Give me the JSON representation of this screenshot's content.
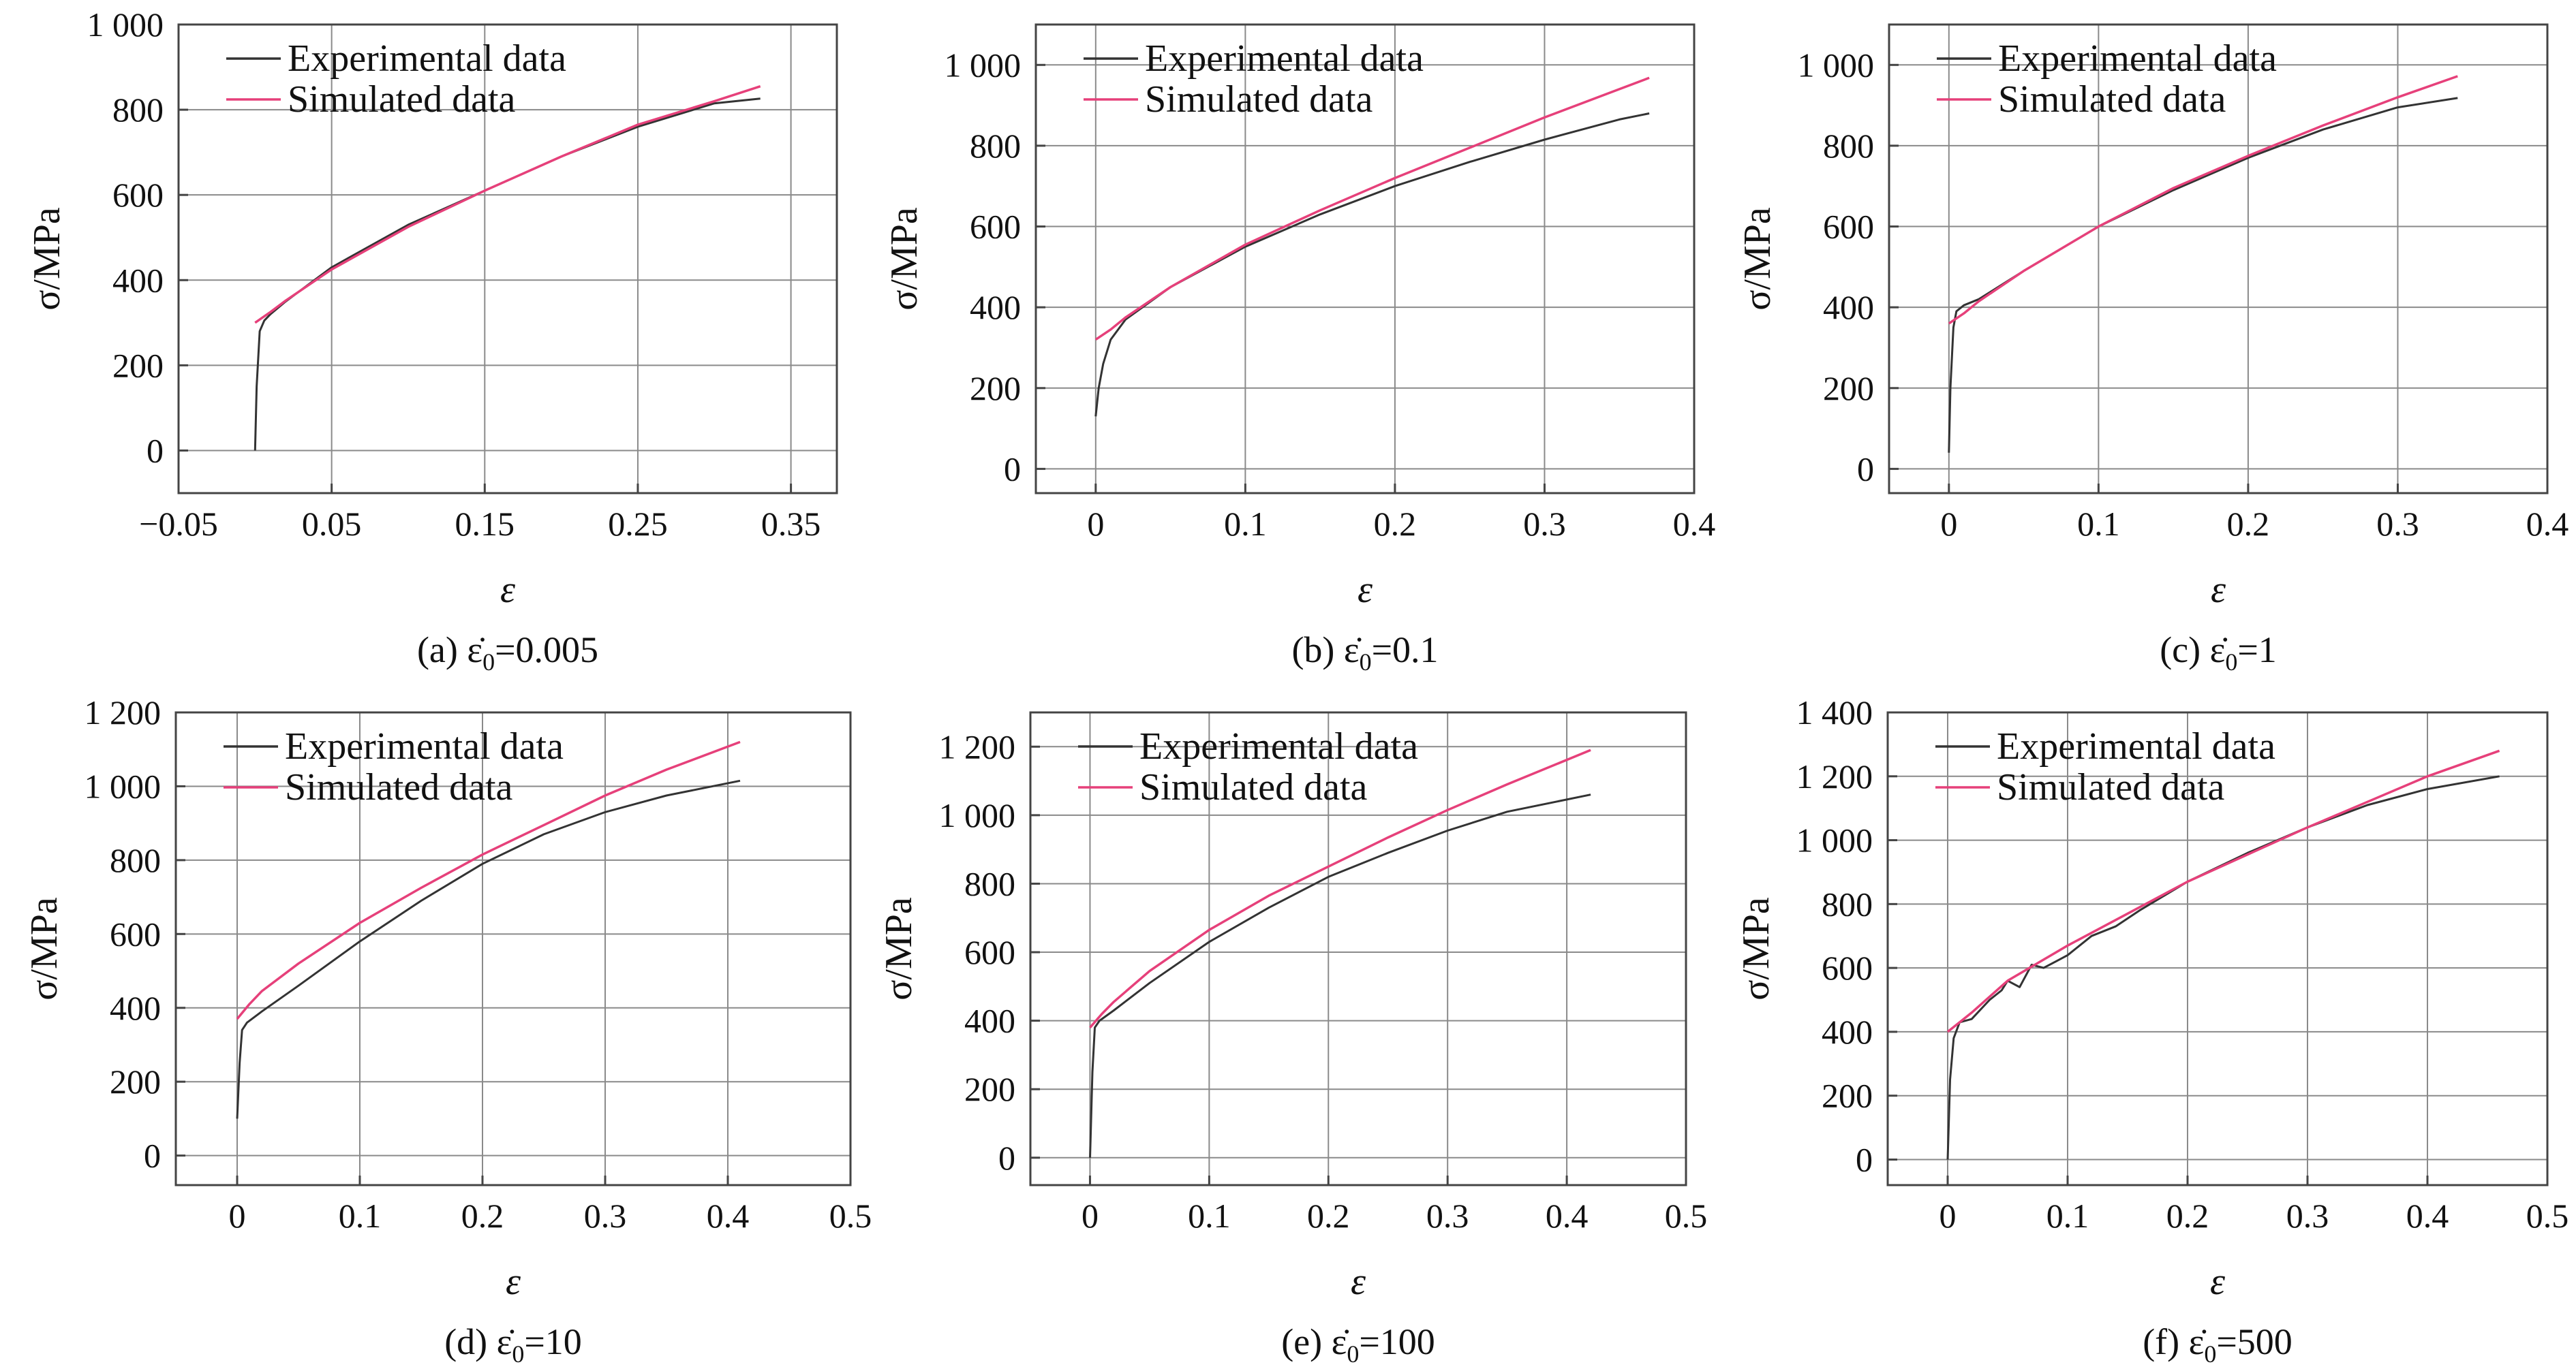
{
  "chart_data": [
    {
      "type": "line",
      "caption": "(a) ε̇",
      "caption_sub": "0",
      "caption_value": "=0.005",
      "xlabel": "ε",
      "ylabel": "σ/MPa",
      "xlim": [
        -0.05,
        0.38
      ],
      "ylim": [
        -100,
        1000
      ],
      "xticks": [
        -0.05,
        0.05,
        0.15,
        0.25,
        0.35
      ],
      "xtick_labels": [
        "−0.05",
        "0.05",
        "0.15",
        "0.25",
        "0.35"
      ],
      "yticks": [
        0,
        200,
        400,
        600,
        800,
        1000
      ],
      "ytick_labels": [
        "0",
        "200",
        "400",
        "600",
        "800",
        "1 000"
      ],
      "grid": true,
      "legend_position": "top-left",
      "series": [
        {
          "name": "Experimental data",
          "color": "#333333",
          "x": [
            0,
            0.001,
            0.003,
            0.006,
            0.01,
            0.02,
            0.05,
            0.1,
            0.15,
            0.2,
            0.25,
            0.3,
            0.33
          ],
          "y": [
            0,
            150,
            280,
            305,
            320,
            350,
            430,
            530,
            610,
            690,
            760,
            815,
            826
          ]
        },
        {
          "name": "Simulated data",
          "color": "#e6407a",
          "x": [
            0,
            0.01,
            0.02,
            0.05,
            0.1,
            0.15,
            0.2,
            0.25,
            0.3,
            0.33
          ],
          "y": [
            300,
            325,
            352,
            425,
            525,
            610,
            690,
            765,
            820,
            855
          ]
        }
      ]
    },
    {
      "type": "line",
      "caption": "(b) ε̇",
      "caption_sub": "0",
      "caption_value": "=0.1",
      "xlabel": "ε",
      "ylabel": "σ/MPa",
      "xlim": [
        -0.04,
        0.4
      ],
      "ylim": [
        -60,
        1100
      ],
      "xticks": [
        0,
        0.1,
        0.2,
        0.3,
        0.4
      ],
      "xtick_labels": [
        "0",
        "0.1",
        "0.2",
        "0.3",
        "0.4"
      ],
      "yticks": [
        0,
        200,
        400,
        600,
        800,
        1000
      ],
      "ytick_labels": [
        "0",
        "200",
        "400",
        "600",
        "800",
        "1 000"
      ],
      "grid": true,
      "legend_position": "top-left",
      "series": [
        {
          "name": "Experimental data",
          "color": "#333333",
          "x": [
            0,
            0.002,
            0.005,
            0.01,
            0.02,
            0.05,
            0.1,
            0.15,
            0.2,
            0.25,
            0.3,
            0.35,
            0.37
          ],
          "y": [
            130,
            200,
            260,
            320,
            370,
            450,
            550,
            630,
            700,
            760,
            815,
            865,
            880
          ]
        },
        {
          "name": "Simulated data",
          "color": "#e6407a",
          "x": [
            0,
            0.01,
            0.02,
            0.05,
            0.1,
            0.15,
            0.2,
            0.25,
            0.3,
            0.35,
            0.37
          ],
          "y": [
            320,
            345,
            375,
            450,
            555,
            640,
            720,
            795,
            870,
            940,
            968
          ]
        }
      ]
    },
    {
      "type": "line",
      "caption": "(c) ε̇",
      "caption_sub": "0",
      "caption_value": "=1",
      "xlabel": "ε",
      "ylabel": "σ/MPa",
      "xlim": [
        -0.04,
        0.4
      ],
      "ylim": [
        -60,
        1100
      ],
      "xticks": [
        0,
        0.1,
        0.2,
        0.3,
        0.4
      ],
      "xtick_labels": [
        "0",
        "0.1",
        "0.2",
        "0.3",
        "0.4"
      ],
      "yticks": [
        0,
        200,
        400,
        600,
        800,
        1000
      ],
      "ytick_labels": [
        "0",
        "200",
        "400",
        "600",
        "800",
        "1 000"
      ],
      "grid": true,
      "legend_position": "top-left",
      "series": [
        {
          "name": "Experimental data",
          "color": "#333333",
          "x": [
            0,
            0.001,
            0.003,
            0.005,
            0.01,
            0.02,
            0.05,
            0.1,
            0.15,
            0.2,
            0.25,
            0.3,
            0.34
          ],
          "y": [
            40,
            200,
            350,
            390,
            405,
            420,
            490,
            600,
            690,
            770,
            840,
            895,
            918
          ]
        },
        {
          "name": "Simulated data",
          "color": "#e6407a",
          "x": [
            0,
            0.01,
            0.02,
            0.05,
            0.1,
            0.15,
            0.2,
            0.25,
            0.3,
            0.34
          ],
          "y": [
            360,
            385,
            415,
            490,
            600,
            695,
            775,
            850,
            920,
            972
          ]
        }
      ]
    },
    {
      "type": "line",
      "caption": "(d) ε̇",
      "caption_sub": "0",
      "caption_value": "=10",
      "xlabel": "ε",
      "ylabel": "σ/MPa",
      "xlim": [
        -0.05,
        0.5
      ],
      "ylim": [
        -80,
        1200
      ],
      "xticks": [
        0,
        0.1,
        0.2,
        0.3,
        0.4,
        0.5
      ],
      "xtick_labels": [
        "0",
        "0.1",
        "0.2",
        "0.3",
        "0.4",
        "0.5"
      ],
      "yticks": [
        0,
        200,
        400,
        600,
        800,
        1000,
        1200
      ],
      "ytick_labels": [
        "0",
        "200",
        "400",
        "600",
        "800",
        "1 000",
        "1 200"
      ],
      "grid": true,
      "legend_position": "top-left",
      "series": [
        {
          "name": "Experimental data",
          "color": "#333333",
          "x": [
            0,
            0.002,
            0.004,
            0.008,
            0.02,
            0.05,
            0.1,
            0.15,
            0.2,
            0.25,
            0.3,
            0.35,
            0.41
          ],
          "y": [
            100,
            250,
            340,
            360,
            390,
            460,
            580,
            690,
            790,
            870,
            930,
            975,
            1015
          ]
        },
        {
          "name": "Simulated data",
          "color": "#e6407a",
          "x": [
            0,
            0.01,
            0.02,
            0.05,
            0.1,
            0.15,
            0.2,
            0.25,
            0.3,
            0.35,
            0.41
          ],
          "y": [
            370,
            410,
            445,
            520,
            630,
            725,
            815,
            895,
            975,
            1045,
            1120
          ]
        }
      ]
    },
    {
      "type": "line",
      "caption": "(e) ε̇",
      "caption_sub": "0",
      "caption_value": "=100",
      "xlabel": "ε",
      "ylabel": "σ/MPa",
      "xlim": [
        -0.05,
        0.5
      ],
      "ylim": [
        -80,
        1300
      ],
      "xticks": [
        0,
        0.1,
        0.2,
        0.3,
        0.4,
        0.5
      ],
      "xtick_labels": [
        "0",
        "0.1",
        "0.2",
        "0.3",
        "0.4",
        "0.5"
      ],
      "yticks": [
        0,
        200,
        400,
        600,
        800,
        1000,
        1200
      ],
      "ytick_labels": [
        "0",
        "200",
        "400",
        "600",
        "800",
        "1 000",
        "1 200"
      ],
      "grid": true,
      "legend_position": "top-left",
      "series": [
        {
          "name": "Experimental data",
          "color": "#333333",
          "x": [
            0,
            0.002,
            0.004,
            0.008,
            0.02,
            0.05,
            0.1,
            0.15,
            0.2,
            0.25,
            0.3,
            0.35,
            0.42
          ],
          "y": [
            0,
            250,
            380,
            400,
            430,
            510,
            630,
            730,
            820,
            890,
            955,
            1010,
            1060
          ]
        },
        {
          "name": "Simulated data",
          "color": "#e6407a",
          "x": [
            0,
            0.01,
            0.02,
            0.05,
            0.1,
            0.15,
            0.2,
            0.25,
            0.3,
            0.35,
            0.42
          ],
          "y": [
            380,
            420,
            455,
            545,
            665,
            765,
            850,
            935,
            1015,
            1090,
            1190
          ]
        }
      ]
    },
    {
      "type": "line",
      "caption": "(f) ε̇",
      "caption_sub": "0",
      "caption_value": "=500",
      "xlabel": "ε",
      "ylabel": "σ/MPa",
      "xlim": [
        -0.05,
        0.5
      ],
      "ylim": [
        -80,
        1400
      ],
      "xticks": [
        0,
        0.1,
        0.2,
        0.3,
        0.4,
        0.5
      ],
      "xtick_labels": [
        "0",
        "0.1",
        "0.2",
        "0.3",
        "0.4",
        "0.5"
      ],
      "yticks": [
        0,
        200,
        400,
        600,
        800,
        1000,
        1200,
        1400
      ],
      "ytick_labels": [
        "0",
        "200",
        "400",
        "600",
        "800",
        "1 000",
        "1 200",
        "1 400"
      ],
      "grid": true,
      "legend_position": "top-left",
      "series": [
        {
          "name": "Experimental data",
          "color": "#333333",
          "x": [
            0,
            0.002,
            0.005,
            0.01,
            0.02,
            0.03,
            0.035,
            0.045,
            0.05,
            0.06,
            0.07,
            0.08,
            0.09,
            0.1,
            0.12,
            0.14,
            0.16,
            0.2,
            0.25,
            0.3,
            0.35,
            0.4,
            0.46
          ],
          "y": [
            0,
            250,
            380,
            430,
            440,
            480,
            500,
            530,
            560,
            540,
            610,
            600,
            620,
            640,
            700,
            730,
            780,
            870,
            960,
            1040,
            1110,
            1160,
            1200
          ]
        },
        {
          "name": "Simulated data",
          "color": "#e6407a",
          "x": [
            0,
            0.01,
            0.02,
            0.05,
            0.1,
            0.15,
            0.2,
            0.25,
            0.3,
            0.35,
            0.4,
            0.46
          ],
          "y": [
            400,
            430,
            460,
            560,
            670,
            770,
            870,
            955,
            1040,
            1120,
            1200,
            1280
          ]
        }
      ]
    }
  ]
}
